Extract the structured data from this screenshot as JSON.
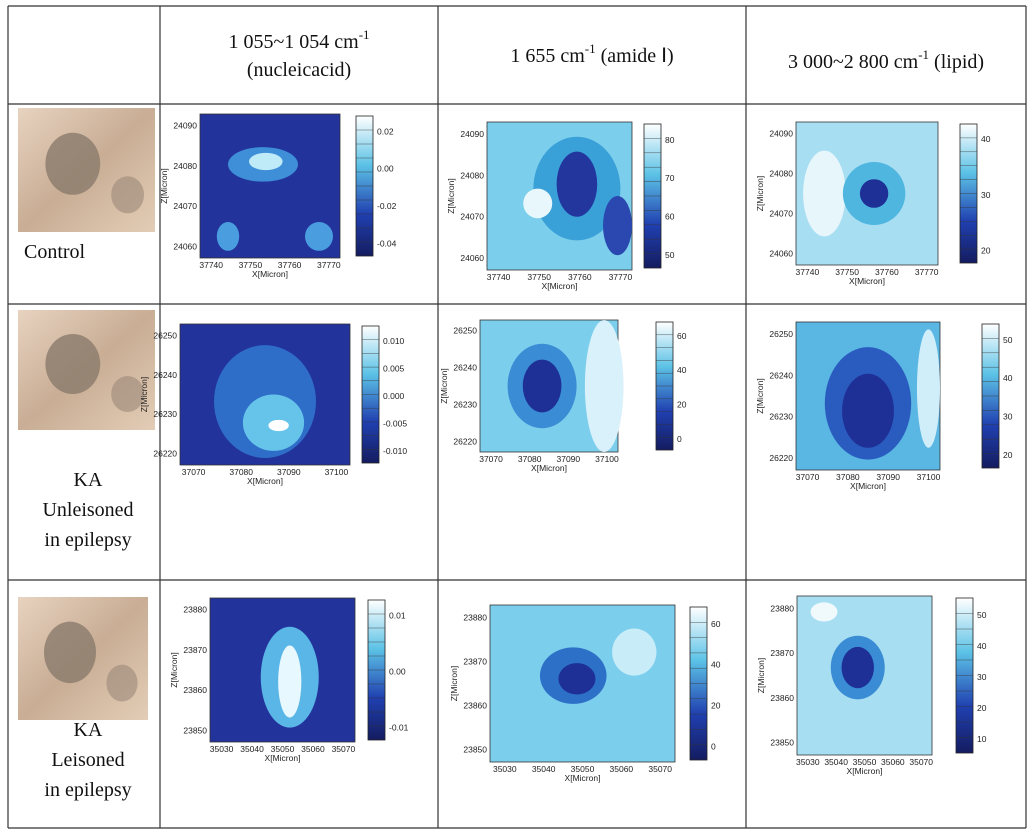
{
  "header": {
    "columns": [
      {
        "main": "1 055~1 054 cm",
        "sup": "-1",
        "line2": "(nucleicacid)"
      },
      {
        "main": "1 655 cm",
        "sup": "-1",
        "suffix": " (amide Ⅰ)"
      },
      {
        "main": "3 000~2 800 cm",
        "sup": "-1",
        "suffix": " (lipid)"
      }
    ]
  },
  "rows": [
    {
      "label": [
        "Control"
      ],
      "plots": [
        {
          "xticks": [
            "37740",
            "37750",
            "37760",
            "37770"
          ],
          "yticks": [
            "24090",
            "24080",
            "24070",
            "24060"
          ],
          "cbticks": [
            "0.02",
            "0.00",
            "-0.02",
            "-0.04"
          ],
          "xlabel": "X[Micron]",
          "ylabel": "Z[Micron]"
        },
        {
          "xticks": [
            "37740",
            "37750",
            "37760",
            "37770"
          ],
          "yticks": [
            "24090",
            "24080",
            "24070",
            "24060"
          ],
          "cbticks": [
            "80",
            "70",
            "60",
            "50"
          ],
          "xlabel": "X[Micron]",
          "ylabel": "Z[Micron]"
        },
        {
          "xticks": [
            "37740",
            "37750",
            "37760",
            "37770"
          ],
          "yticks": [
            "24090",
            "24080",
            "24070",
            "24060"
          ],
          "cbticks": [
            "40",
            "30",
            "20"
          ],
          "xlabel": "X[Micron]",
          "ylabel": "Z[Micron]"
        }
      ]
    },
    {
      "label": [
        "KA",
        "Unleisoned",
        "in epilepsy"
      ],
      "plots": [
        {
          "xticks": [
            "37070",
            "37080",
            "37090",
            "37100"
          ],
          "yticks": [
            "26250",
            "26240",
            "26230",
            "26220"
          ],
          "cbticks": [
            "0.010",
            "0.005",
            "0.000",
            "-0.005",
            "-0.010"
          ],
          "xlabel": "X[Micron]",
          "ylabel": "Z[Micron]"
        },
        {
          "xticks": [
            "37070",
            "37080",
            "37090",
            "37100"
          ],
          "yticks": [
            "26250",
            "26240",
            "26230",
            "26220"
          ],
          "cbticks": [
            "60",
            "40",
            "20",
            "0"
          ],
          "xlabel": "X[Micron]",
          "ylabel": "Z[Micron]"
        },
        {
          "xticks": [
            "37070",
            "37080",
            "37090",
            "37100"
          ],
          "yticks": [
            "26250",
            "26240",
            "26230",
            "26220"
          ],
          "cbticks": [
            "50",
            "40",
            "30",
            "20"
          ],
          "xlabel": "X[Micron]",
          "ylabel": "Z[Micron]"
        }
      ]
    },
    {
      "label": [
        "KA",
        "Leisoned",
        "in epilepsy"
      ],
      "plots": [
        {
          "xticks": [
            "35030",
            "35040",
            "35050",
            "35060",
            "35070"
          ],
          "yticks": [
            "23880",
            "23870",
            "23860",
            "23850"
          ],
          "cbticks": [
            "0.01",
            "0.00",
            "-0.01"
          ],
          "xlabel": "X[Micron]",
          "ylabel": "Z[Micron]"
        },
        {
          "xticks": [
            "35030",
            "35040",
            "35050",
            "35060",
            "35070"
          ],
          "yticks": [
            "23880",
            "23870",
            "23860",
            "23850"
          ],
          "cbticks": [
            "60",
            "40",
            "20",
            "0"
          ],
          "xlabel": "X[Micron]",
          "ylabel": "Z[Micron]"
        },
        {
          "xticks": [
            "35030",
            "35040",
            "35050",
            "35060",
            "35070"
          ],
          "yticks": [
            "23880",
            "23870",
            "23860",
            "23850"
          ],
          "cbticks": [
            "50",
            "40",
            "30",
            "20",
            "10"
          ],
          "xlabel": "X[Micron]",
          "ylabel": "Z[Micron]"
        }
      ]
    }
  ]
}
